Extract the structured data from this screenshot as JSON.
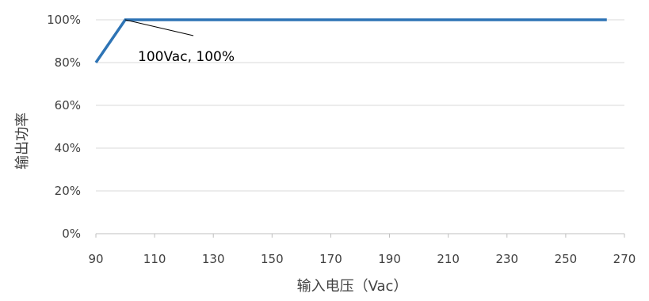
{
  "chart_data": {
    "type": "line",
    "title": "",
    "xlabel": "输入电压（Vac）",
    "ylabel": "输出功率",
    "x_ticks": [
      90,
      110,
      130,
      150,
      170,
      190,
      210,
      230,
      250,
      270
    ],
    "y_ticks": [
      "0%",
      "20%",
      "40%",
      "60%",
      "80%",
      "100%"
    ],
    "xlim": [
      90,
      270
    ],
    "ylim": [
      0,
      100
    ],
    "grid": "horizontal",
    "series": [
      {
        "color": "#2e74b5",
        "x": [
          90,
          100,
          264
        ],
        "y": [
          80,
          100,
          100
        ]
      }
    ],
    "annotations": [
      {
        "text": "100Vac, 100%",
        "x": 100,
        "y": 100
      }
    ]
  }
}
